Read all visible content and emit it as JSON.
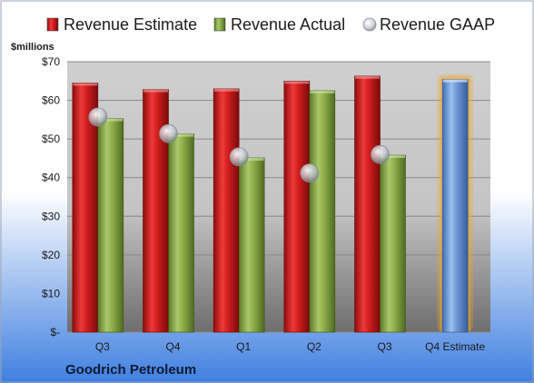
{
  "chart_data": {
    "type": "bar",
    "unit_label": "$millions",
    "company": "Goodrich Petroleum",
    "categories": [
      "Q3",
      "Q4",
      "Q1",
      "Q2",
      "Q3",
      "Q4 Estimate"
    ],
    "series": [
      {
        "name": "Revenue Estimate",
        "kind": "bar",
        "color": "#d01c1c",
        "values": [
          64.5,
          62.8,
          63.0,
          65.0,
          66.3,
          null
        ]
      },
      {
        "name": "Revenue Actual",
        "kind": "bar",
        "color": "#8fb14b",
        "values": [
          55.3,
          51.3,
          45.1,
          62.5,
          45.8,
          null
        ]
      },
      {
        "name": "Revenue GAAP",
        "kind": "marker",
        "color": "#c8ccd4",
        "values": [
          55.7,
          51.4,
          45.4,
          41.2,
          46.0,
          null
        ]
      }
    ],
    "forecast": {
      "category_index": 5,
      "value": 65.4,
      "color": "#6f9bd6",
      "glow": "#f5a623"
    },
    "ylim": [
      0,
      70
    ],
    "yticks": [
      0,
      10,
      20,
      30,
      40,
      50,
      60,
      70
    ],
    "ytick_labels": [
      "$-",
      "$10",
      "$20",
      "$30",
      "$40",
      "$50",
      "$60",
      "$70"
    ],
    "grid": true,
    "legend_position": "top"
  }
}
